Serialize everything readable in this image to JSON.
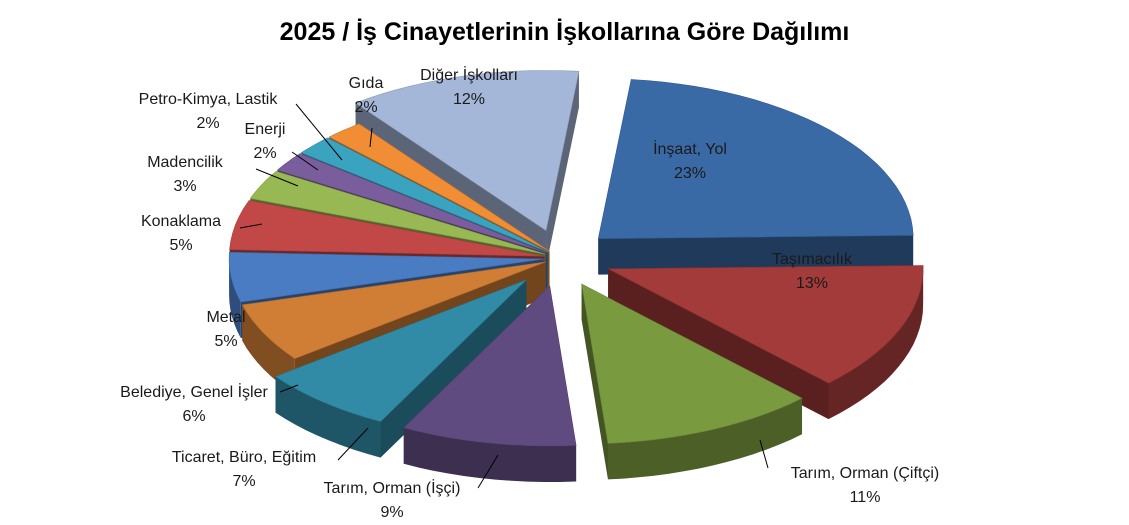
{
  "chart_data": {
    "type": "pie",
    "title": "2025 / İş Cinayetlerinin İşkollarına Göre Dağılımı",
    "style": "3d-exploded",
    "legend": "none",
    "slices": [
      {
        "label": "İnşaat, Yol",
        "value": 23,
        "value_label": "23%",
        "color": "#3a6aa6"
      },
      {
        "label": "Taşımacılık",
        "value": 13,
        "value_label": "13%",
        "color": "#a33b3a"
      },
      {
        "label": "Tarım, Orman (Çiftçi)",
        "value": 11,
        "value_label": "11%",
        "color": "#7a9a3f"
      },
      {
        "label": "Tarım, Orman (İşçi)",
        "value": 9,
        "value_label": "9%",
        "color": "#604b80"
      },
      {
        "label": "Ticaret, Büro, Eğitim",
        "value": 7,
        "value_label": "7%",
        "color": "#318ba6"
      },
      {
        "label": "Belediye, Genel İşler",
        "value": 6,
        "value_label": "6%",
        "color": "#d07d35"
      },
      {
        "label": "Metal",
        "value": 5,
        "value_label": "5%",
        "color": "#4a7cc4"
      },
      {
        "label": "Konaklama",
        "value": 5,
        "value_label": "5%",
        "color": "#c24848"
      },
      {
        "label": "Madencilik",
        "value": 3,
        "value_label": "3%",
        "color": "#97b852"
      },
      {
        "label": "Enerji",
        "value": 2,
        "value_label": "2%",
        "color": "#7a5d9c"
      },
      {
        "label": "Petro-Kimya, Lastik",
        "value": 2,
        "value_label": "2%",
        "color": "#3aa3bf"
      },
      {
        "label": "Gıda",
        "value": 2,
        "value_label": "2%",
        "color": "#f08d35"
      },
      {
        "label": "Diğer İşkolları",
        "value": 12,
        "value_label": "12%",
        "color": "#a5b7d8"
      }
    ]
  }
}
